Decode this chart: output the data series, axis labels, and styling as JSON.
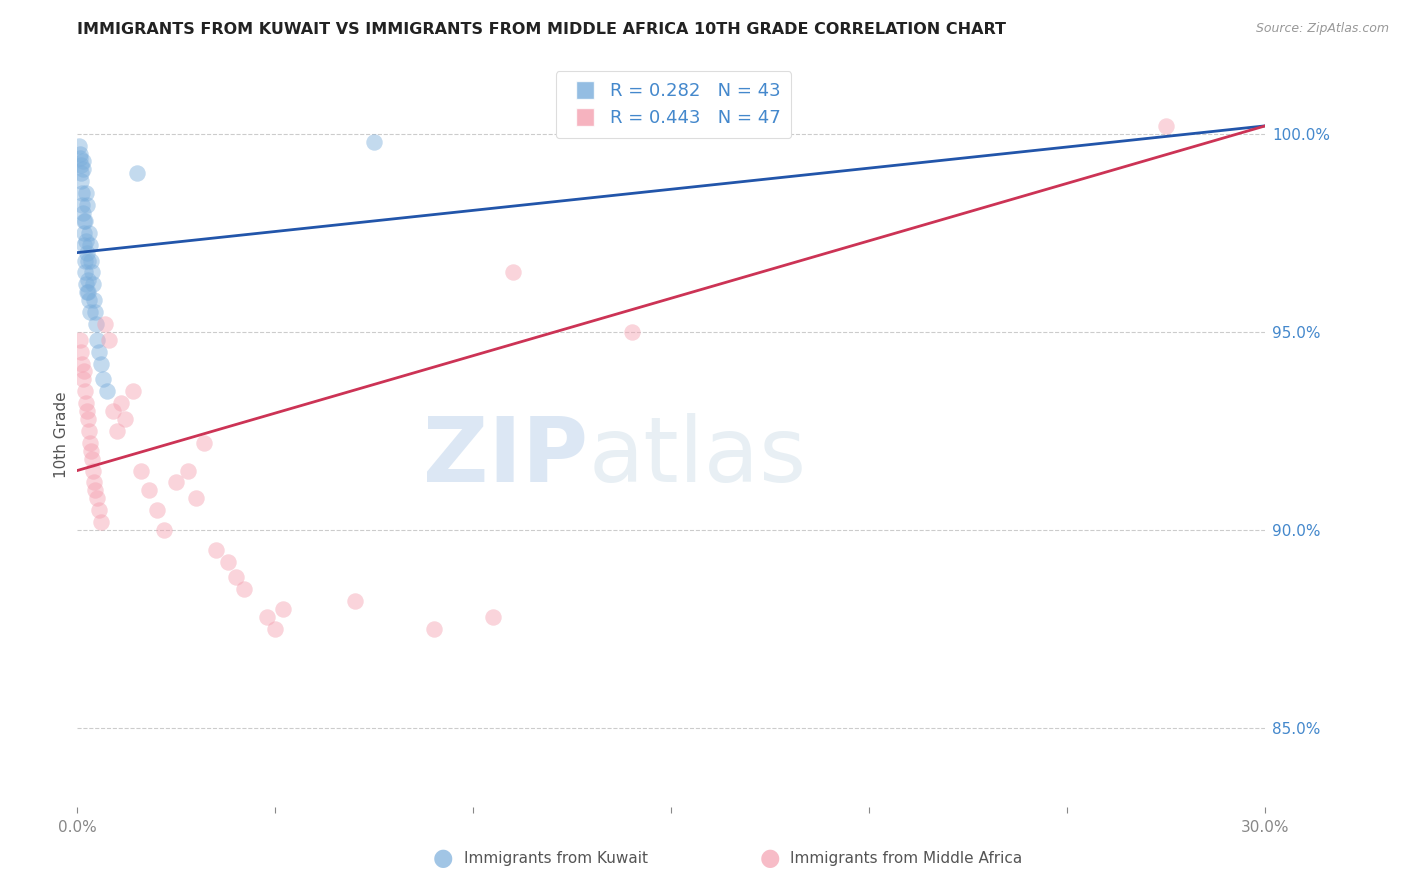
{
  "title": "IMMIGRANTS FROM KUWAIT VS IMMIGRANTS FROM MIDDLE AFRICA 10TH GRADE CORRELATION CHART",
  "source": "Source: ZipAtlas.com",
  "ylabel": "10th Grade",
  "y_ticks": [
    85.0,
    90.0,
    95.0,
    100.0
  ],
  "x_range": [
    0.0,
    30.0
  ],
  "y_range": [
    83.0,
    101.8
  ],
  "blue_label": "Immigrants from Kuwait",
  "pink_label": "Immigrants from Middle Africa",
  "blue_R": 0.282,
  "blue_N": 43,
  "pink_R": 0.443,
  "pink_N": 47,
  "blue_color": "#7AADDB",
  "pink_color": "#F4A0B0",
  "blue_line_color": "#2255AA",
  "pink_line_color": "#CC3355",
  "blue_x": [
    0.05,
    0.07,
    0.08,
    0.09,
    0.1,
    0.1,
    0.12,
    0.13,
    0.14,
    0.15,
    0.15,
    0.17,
    0.18,
    0.18,
    0.19,
    0.2,
    0.2,
    0.22,
    0.22,
    0.23,
    0.24,
    0.25,
    0.25,
    0.27,
    0.28,
    0.28,
    0.3,
    0.3,
    0.32,
    0.33,
    0.35,
    0.37,
    0.4,
    0.42,
    0.45,
    0.48,
    0.5,
    0.55,
    0.6,
    0.65,
    0.75,
    1.5,
    7.5
  ],
  "blue_y": [
    99.7,
    99.5,
    99.4,
    99.2,
    99.0,
    98.8,
    98.5,
    98.2,
    99.3,
    99.1,
    98.0,
    97.8,
    97.5,
    97.2,
    96.8,
    96.5,
    97.8,
    97.3,
    96.2,
    98.5,
    98.2,
    97.0,
    96.0,
    96.8,
    96.3,
    96.0,
    97.5,
    95.8,
    95.5,
    97.2,
    96.8,
    96.5,
    96.2,
    95.8,
    95.5,
    95.2,
    94.8,
    94.5,
    94.2,
    93.8,
    93.5,
    99.0,
    99.8
  ],
  "pink_x": [
    0.08,
    0.1,
    0.12,
    0.15,
    0.18,
    0.2,
    0.22,
    0.25,
    0.28,
    0.3,
    0.32,
    0.35,
    0.38,
    0.4,
    0.42,
    0.45,
    0.5,
    0.55,
    0.6,
    0.7,
    0.8,
    0.9,
    1.0,
    1.1,
    1.2,
    1.4,
    1.6,
    1.8,
    2.0,
    2.2,
    2.5,
    2.8,
    3.0,
    3.2,
    3.5,
    3.8,
    4.0,
    4.2,
    4.8,
    5.0,
    5.2,
    7.0,
    9.0,
    10.5,
    11.0,
    14.0,
    27.5
  ],
  "pink_y": [
    94.8,
    94.5,
    94.2,
    93.8,
    94.0,
    93.5,
    93.2,
    93.0,
    92.8,
    92.5,
    92.2,
    92.0,
    91.8,
    91.5,
    91.2,
    91.0,
    90.8,
    90.5,
    90.2,
    95.2,
    94.8,
    93.0,
    92.5,
    93.2,
    92.8,
    93.5,
    91.5,
    91.0,
    90.5,
    90.0,
    91.2,
    91.5,
    90.8,
    92.2,
    89.5,
    89.2,
    88.8,
    88.5,
    87.8,
    87.5,
    88.0,
    88.2,
    87.5,
    87.8,
    96.5,
    95.0,
    100.2
  ],
  "blue_line_x0": 0.0,
  "blue_line_y0": 97.0,
  "blue_line_x1": 30.0,
  "blue_line_y1": 100.2,
  "pink_line_x0": 0.0,
  "pink_line_y0": 91.5,
  "pink_line_x1": 30.0,
  "pink_line_y1": 100.2
}
